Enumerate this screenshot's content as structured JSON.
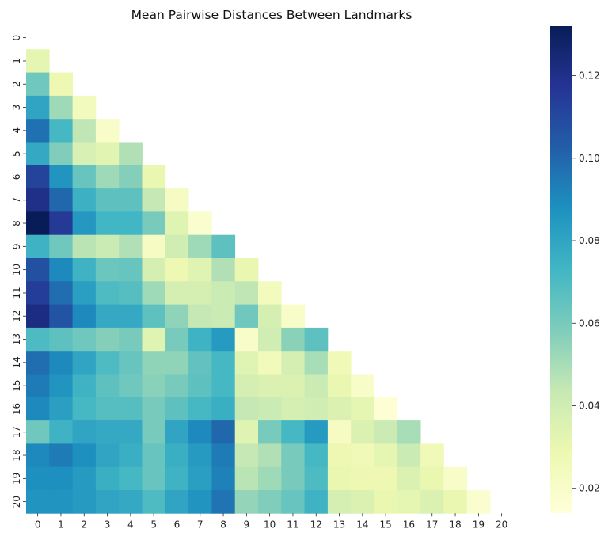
{
  "chart_data": {
    "type": "heatmap",
    "title": "Mean Pairwise Distances Between Landmarks",
    "xlabel": "",
    "ylabel": "",
    "labels": [
      "0",
      "1",
      "2",
      "3",
      "4",
      "5",
      "6",
      "7",
      "8",
      "9",
      "10",
      "11",
      "12",
      "13",
      "14",
      "15",
      "16",
      "17",
      "18",
      "19",
      "20"
    ],
    "mask": "upper-triangle-including-diagonal",
    "colormap": "YlGnBu",
    "vmin": 0.014,
    "vmax": 0.132,
    "colorbar_ticks": [
      0.02,
      0.04,
      0.06,
      0.08,
      0.1,
      0.12
    ],
    "colorbar_tick_labels": [
      "0.02",
      "0.04",
      "0.06",
      "0.08",
      "0.10",
      "0.12"
    ],
    "values": [
      [],
      [
        0.032
      ],
      [
        0.062,
        0.028
      ],
      [
        0.08,
        0.052,
        0.024
      ],
      [
        0.097,
        0.072,
        0.045,
        0.02
      ],
      [
        0.078,
        0.058,
        0.037,
        0.033,
        0.048
      ],
      [
        0.112,
        0.086,
        0.064,
        0.052,
        0.057,
        0.03
      ],
      [
        0.12,
        0.1,
        0.075,
        0.066,
        0.066,
        0.044,
        0.022
      ],
      [
        0.132,
        0.115,
        0.085,
        0.073,
        0.073,
        0.06,
        0.034,
        0.018
      ],
      [
        0.074,
        0.062,
        0.046,
        0.042,
        0.048,
        0.022,
        0.04,
        0.052,
        0.066
      ],
      [
        0.107,
        0.09,
        0.074,
        0.063,
        0.064,
        0.038,
        0.028,
        0.034,
        0.048,
        0.03
      ],
      [
        0.114,
        0.098,
        0.082,
        0.07,
        0.068,
        0.052,
        0.038,
        0.038,
        0.042,
        0.045,
        0.024
      ],
      [
        0.122,
        0.106,
        0.09,
        0.078,
        0.078,
        0.066,
        0.055,
        0.044,
        0.042,
        0.062,
        0.038,
        0.02
      ],
      [
        0.07,
        0.066,
        0.062,
        0.057,
        0.06,
        0.034,
        0.06,
        0.074,
        0.084,
        0.02,
        0.04,
        0.056,
        0.066
      ],
      [
        0.098,
        0.09,
        0.08,
        0.07,
        0.064,
        0.055,
        0.055,
        0.065,
        0.072,
        0.034,
        0.025,
        0.038,
        0.05,
        0.026
      ],
      [
        0.094,
        0.086,
        0.074,
        0.066,
        0.062,
        0.056,
        0.06,
        0.066,
        0.072,
        0.038,
        0.036,
        0.036,
        0.042,
        0.03,
        0.02
      ],
      [
        0.09,
        0.082,
        0.072,
        0.068,
        0.068,
        0.06,
        0.066,
        0.072,
        0.076,
        0.044,
        0.042,
        0.038,
        0.04,
        0.036,
        0.032,
        0.016
      ],
      [
        0.062,
        0.074,
        0.08,
        0.078,
        0.078,
        0.06,
        0.08,
        0.09,
        0.1,
        0.034,
        0.06,
        0.072,
        0.084,
        0.022,
        0.036,
        0.042,
        0.05
      ],
      [
        0.09,
        0.094,
        0.088,
        0.08,
        0.076,
        0.064,
        0.076,
        0.084,
        0.094,
        0.044,
        0.048,
        0.06,
        0.072,
        0.028,
        0.026,
        0.032,
        0.042,
        0.026
      ],
      [
        0.088,
        0.088,
        0.084,
        0.076,
        0.072,
        0.064,
        0.074,
        0.082,
        0.092,
        0.046,
        0.052,
        0.06,
        0.07,
        0.03,
        0.028,
        0.028,
        0.036,
        0.03,
        0.02
      ],
      [
        0.086,
        0.086,
        0.084,
        0.08,
        0.078,
        0.07,
        0.08,
        0.086,
        0.096,
        0.054,
        0.058,
        0.064,
        0.074,
        0.038,
        0.036,
        0.03,
        0.032,
        0.036,
        0.03,
        0.018
      ]
    ]
  }
}
